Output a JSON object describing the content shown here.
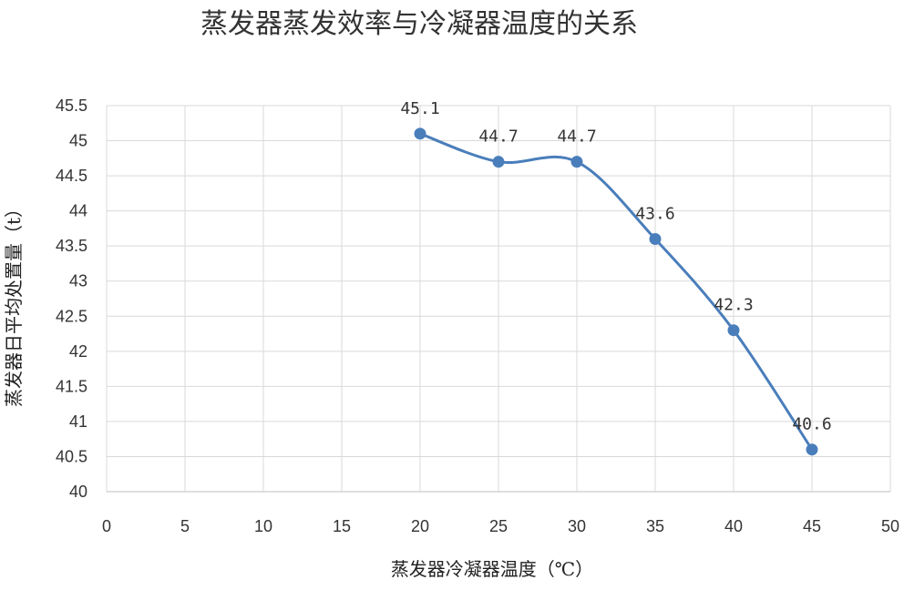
{
  "chart_data": {
    "type": "line",
    "title": "蒸发器蒸发效率与冷凝器温度的关系",
    "xlabel": "蒸发器冷凝器温度（℃）",
    "ylabel": "蒸发器日平均处置量（t）",
    "xlim": [
      0,
      50
    ],
    "ylim": [
      40,
      45.5
    ],
    "x_ticks": [
      "0",
      "5",
      "10",
      "15",
      "20",
      "25",
      "30",
      "35",
      "40",
      "45",
      "50"
    ],
    "y_ticks": [
      "40",
      "40.5",
      "41",
      "41.5",
      "42",
      "42.5",
      "43",
      "43.5",
      "44",
      "44.5",
      "45",
      "45.5"
    ],
    "grid": true,
    "smooth": true,
    "series": [
      {
        "x": [
          20,
          25,
          30,
          35,
          40,
          45
        ],
        "values": [
          45.1,
          44.7,
          44.7,
          43.6,
          42.3,
          40.6
        ],
        "labels": [
          "45.1",
          "44.7",
          "44.7",
          "43.6",
          "42.3",
          "40.6"
        ],
        "color": "#4a7ebb"
      }
    ]
  }
}
